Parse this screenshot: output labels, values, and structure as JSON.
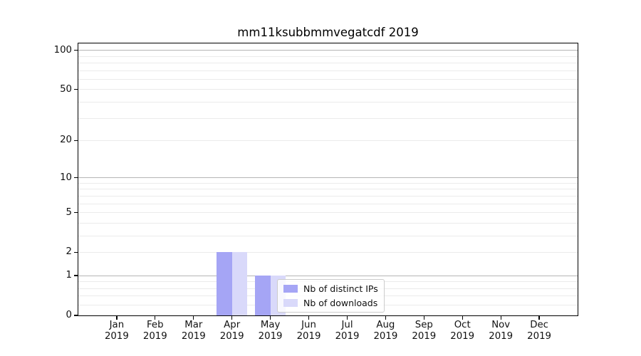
{
  "chart_data": {
    "type": "bar",
    "title": "mm11ksubbmmvegatcdf 2019",
    "categories": [
      "Jan",
      "Feb",
      "Mar",
      "Apr",
      "May",
      "Jun",
      "Jul",
      "Aug",
      "Sep",
      "Oct",
      "Nov",
      "Dec"
    ],
    "year": "2019",
    "series": [
      {
        "name": "Nb of distinct IPs",
        "color": "#a5a5f5",
        "values": [
          0,
          0,
          0,
          2,
          1,
          0,
          0,
          0,
          0,
          0,
          0,
          0
        ]
      },
      {
        "name": "Nb of downloads",
        "color": "#d9d9fa",
        "values": [
          0,
          0,
          0,
          2,
          1,
          0,
          0,
          0,
          0,
          0,
          0,
          0
        ]
      }
    ],
    "yscale": "log1p",
    "ylim": [
      0,
      112
    ],
    "xlim": [
      0,
      13
    ],
    "yticks": [
      0,
      1,
      2,
      5,
      10,
      20,
      50,
      100
    ],
    "grid": true,
    "bar_width": 0.4,
    "legend_position": "lower-center"
  },
  "colors": {
    "grid_decade": "#b5b5b5",
    "grid_minor": "#ebebeb",
    "spine": "#000000",
    "legend_border": "#cccccc",
    "legend_bg": "rgba(255,255,255,0.8)"
  }
}
